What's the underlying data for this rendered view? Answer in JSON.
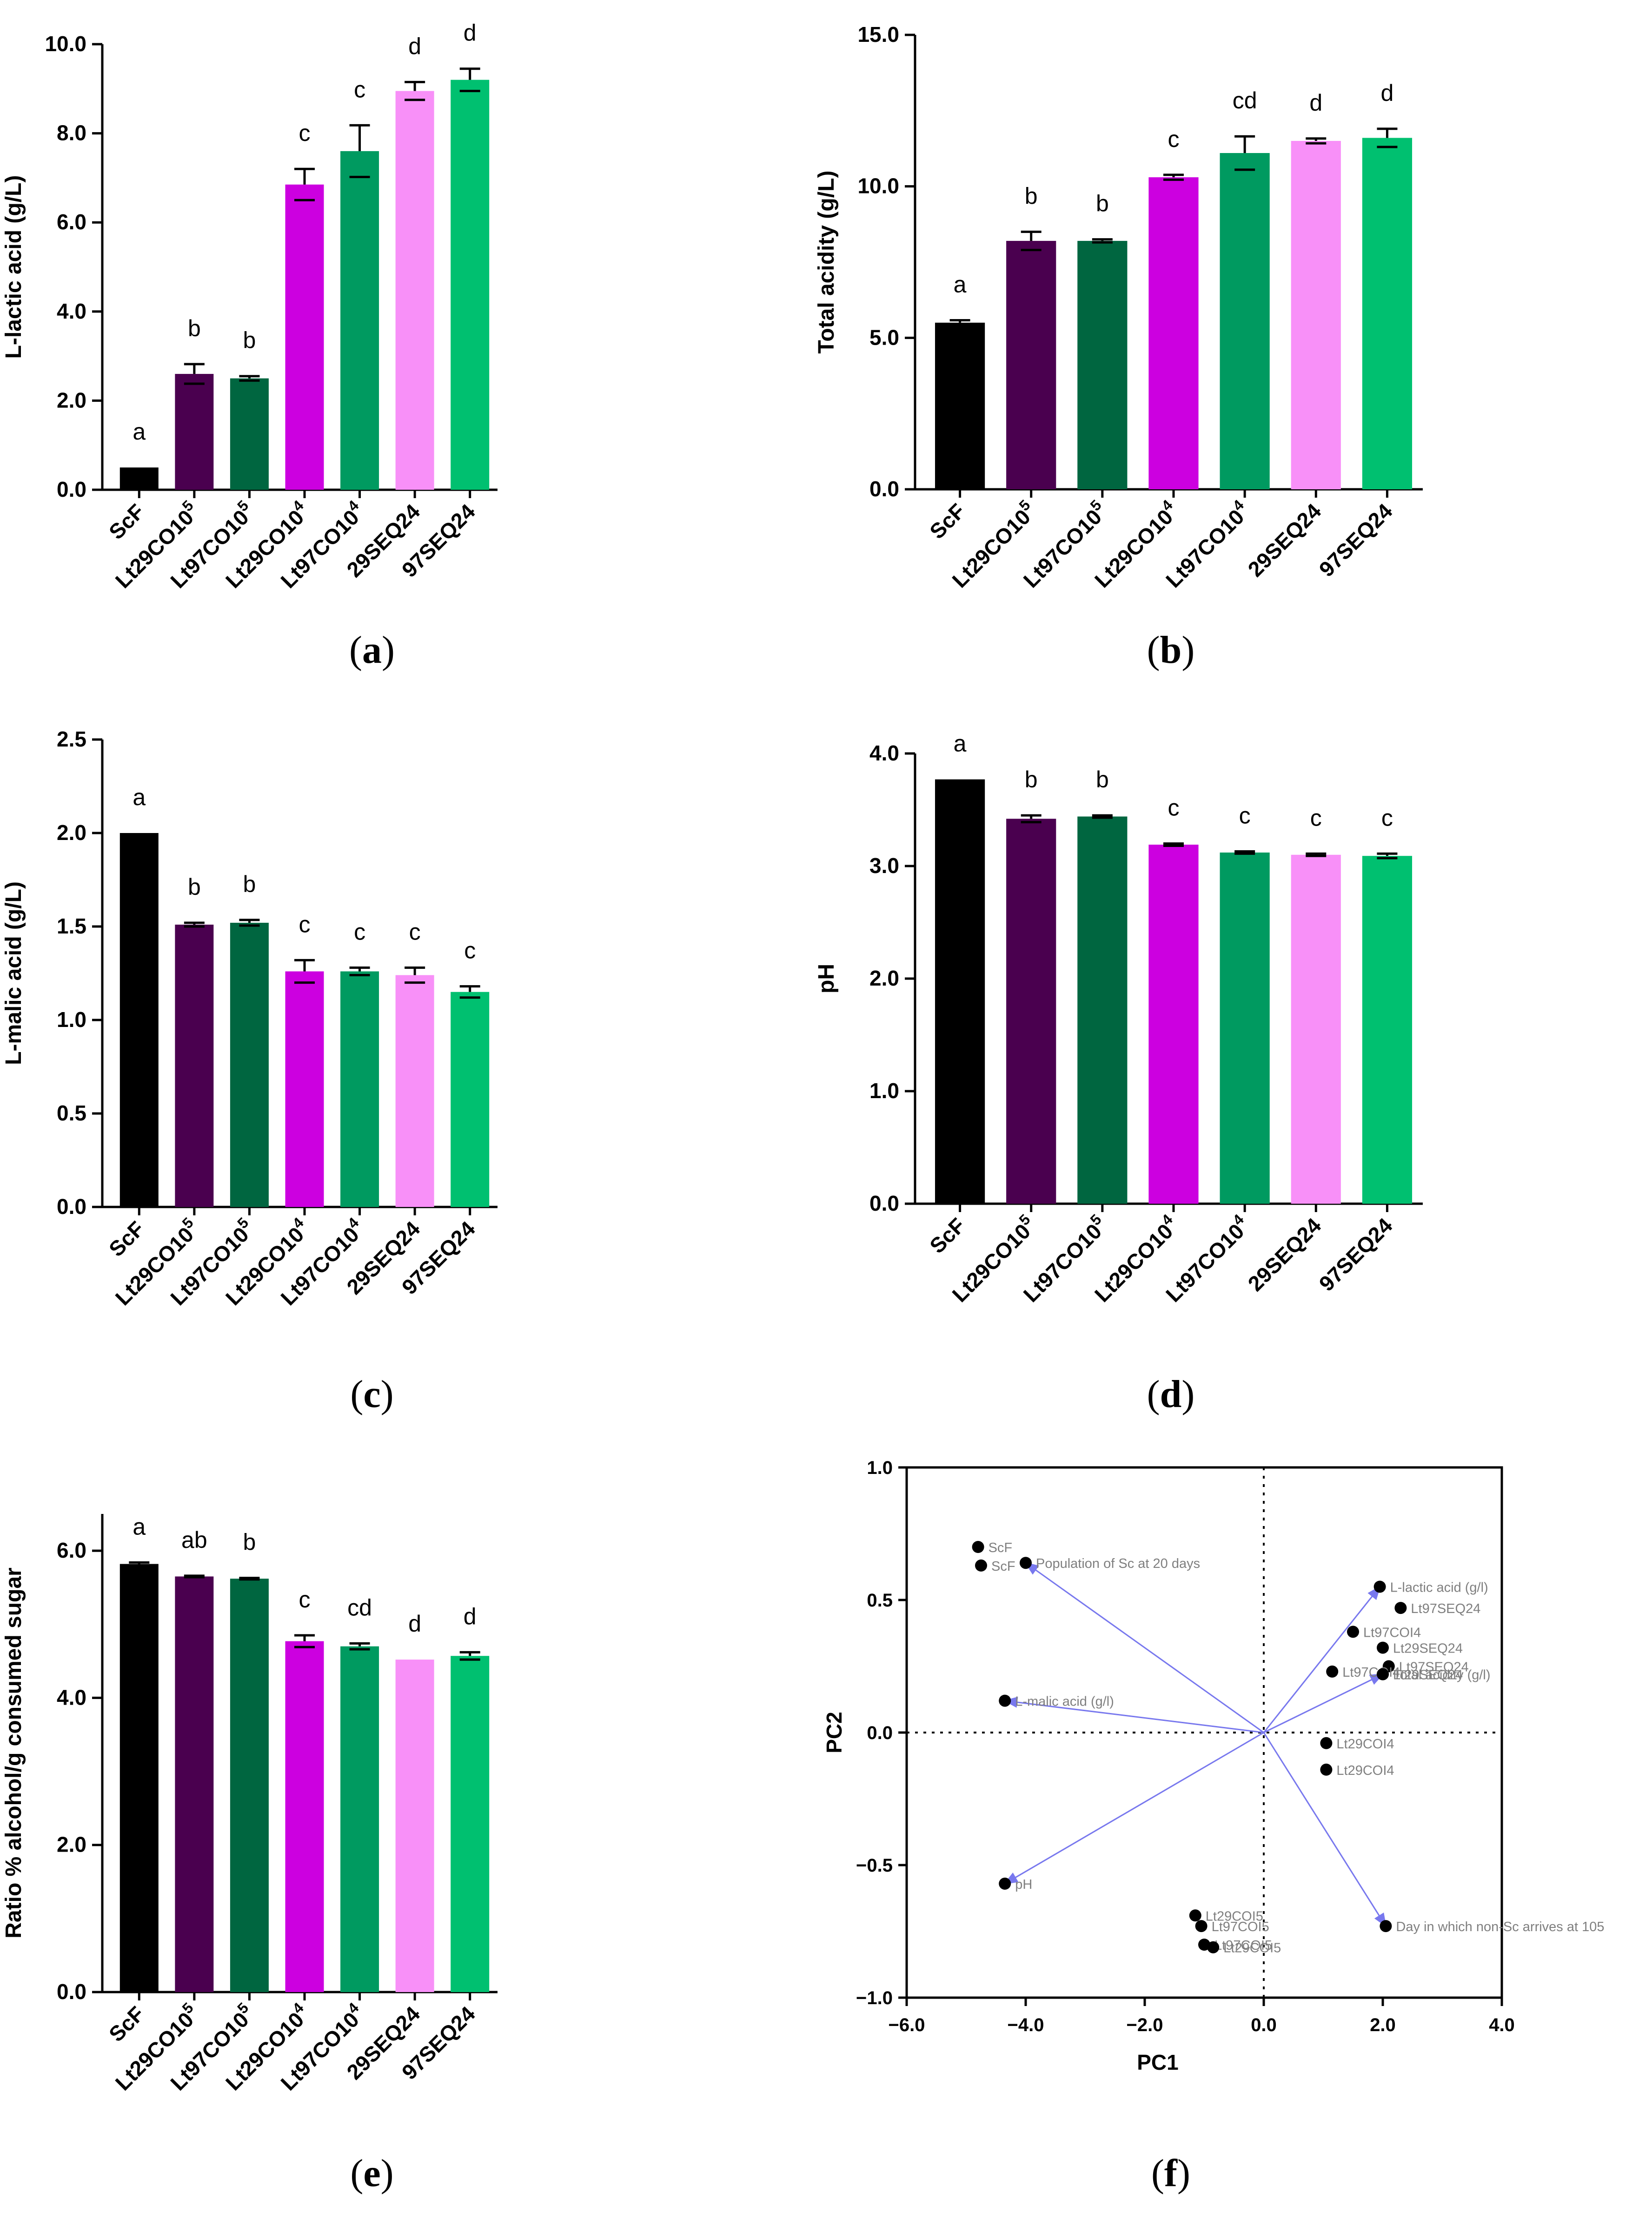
{
  "chart_data": [
    {
      "id": "a",
      "type": "bar",
      "panel_label": "(a)",
      "letter": "a",
      "ylabel": "L-lactic acid  (g/L)",
      "ylim": [
        0,
        10
      ],
      "yticks": [
        "0.0",
        "2.0",
        "4.0",
        "6.0",
        "8.0",
        "10.0"
      ],
      "ytick_values": [
        0,
        2,
        4,
        6,
        8,
        10
      ],
      "categories": [
        "ScF",
        "Lt29CO10",
        "Lt97CO10",
        "Lt29CO10",
        "Lt97CO10",
        "29SEQ24",
        "97SEQ24"
      ],
      "superscripts": [
        "",
        "5",
        "5",
        "4",
        "4",
        "",
        ""
      ],
      "values": [
        0.5,
        2.6,
        2.5,
        6.85,
        7.6,
        8.95,
        9.2
      ],
      "errors": [
        0.0,
        0.22,
        0.05,
        0.35,
        0.58,
        0.2,
        0.25
      ],
      "sig_letters": [
        "a",
        "b",
        "b",
        "c",
        "c",
        "d",
        "d"
      ],
      "colors": [
        "#000000",
        "#4a004f",
        "#006640",
        "#cc00e0",
        "#009a60",
        "#f890f8",
        "#00c070"
      ]
    },
    {
      "id": "b",
      "type": "bar",
      "panel_label": "(b)",
      "letter": "b",
      "ylabel": "Total acidity (g/L)",
      "ylim": [
        0,
        15
      ],
      "yticks": [
        "0.0",
        "5.0",
        "10.0",
        "15.0"
      ],
      "ytick_values": [
        0,
        5,
        10,
        15
      ],
      "categories": [
        "ScF",
        "Lt29CO10",
        "Lt97CO10",
        "Lt29CO10",
        "Lt97CO10",
        "29SEQ24",
        "97SEQ24"
      ],
      "superscripts": [
        "",
        "5",
        "5",
        "4",
        "4",
        "",
        ""
      ],
      "values": [
        5.5,
        8.2,
        8.2,
        10.3,
        11.1,
        11.5,
        11.6
      ],
      "errors": [
        0.08,
        0.3,
        0.05,
        0.08,
        0.55,
        0.08,
        0.3
      ],
      "sig_letters": [
        "a",
        "b",
        "b",
        "c",
        "cd",
        "d",
        "d"
      ],
      "colors": [
        "#000000",
        "#4a004f",
        "#006640",
        "#cc00e0",
        "#009a60",
        "#f890f8",
        "#00c070"
      ]
    },
    {
      "id": "c",
      "type": "bar",
      "panel_label": "(c)",
      "letter": "c",
      "ylabel": "L-malic acid (g/L)",
      "ylim": [
        0,
        2.5
      ],
      "yticks": [
        "0.0",
        "0.5",
        "1.0",
        "1.5",
        "2.0",
        "2.5"
      ],
      "ytick_values": [
        0,
        0.5,
        1,
        1.5,
        2,
        2.5
      ],
      "categories": [
        "ScF",
        "Lt29CO10",
        "Lt97CO10",
        "Lt29CO10",
        "Lt97CO10",
        "29SEQ24",
        "97SEQ24"
      ],
      "superscripts": [
        "",
        "5",
        "5",
        "4",
        "4",
        "",
        ""
      ],
      "values": [
        2.0,
        1.51,
        1.52,
        1.26,
        1.26,
        1.24,
        1.15
      ],
      "errors": [
        0.0,
        0.01,
        0.015,
        0.06,
        0.02,
        0.04,
        0.03
      ],
      "sig_letters": [
        "a",
        "b",
        "b",
        "c",
        "c",
        "c",
        "c"
      ],
      "colors": [
        "#000000",
        "#4a004f",
        "#006640",
        "#cc00e0",
        "#009a60",
        "#f890f8",
        "#00c070"
      ]
    },
    {
      "id": "d",
      "type": "bar",
      "panel_label": "(d)",
      "letter": "d",
      "ylabel": "pH",
      "ylim": [
        0,
        4
      ],
      "yticks": [
        "0.0",
        "1.0",
        "2.0",
        "3.0",
        "4.0"
      ],
      "ytick_values": [
        0,
        1,
        2,
        3,
        4
      ],
      "categories": [
        "ScF",
        "Lt29CO10",
        "Lt97CO10",
        "Lt29CO10",
        "Lt97CO10",
        "29SEQ24",
        "97SEQ24"
      ],
      "superscripts": [
        "",
        "5",
        "5",
        "4",
        "4",
        "",
        ""
      ],
      "values": [
        3.77,
        3.42,
        3.44,
        3.19,
        3.12,
        3.1,
        3.09
      ],
      "errors": [
        0.0,
        0.03,
        0.01,
        0.01,
        0.01,
        0.01,
        0.02
      ],
      "sig_letters": [
        "a",
        "b",
        "b",
        "c",
        "c",
        "c",
        "c"
      ],
      "colors": [
        "#000000",
        "#4a004f",
        "#006640",
        "#cc00e0",
        "#009a60",
        "#f890f8",
        "#00c070"
      ]
    },
    {
      "id": "e",
      "type": "bar",
      "panel_label": "(e)",
      "letter": "e",
      "ylabel": "Ratio % alcohol/g consumed sugar",
      "ylim": [
        0,
        6.5
      ],
      "yticks": [
        "0.0",
        "2.0",
        "4.0",
        "6.0"
      ],
      "ytick_values": [
        0,
        2,
        4,
        6
      ],
      "categories": [
        "ScF",
        "Lt29CO10",
        "Lt97CO10",
        "Lt29CO10",
        "Lt97CO10",
        "29SEQ24",
        "97SEQ24"
      ],
      "superscripts": [
        "",
        "5",
        "5",
        "4",
        "4",
        "",
        ""
      ],
      "values": [
        5.82,
        5.65,
        5.62,
        4.77,
        4.7,
        4.52,
        4.57
      ],
      "errors": [
        0.02,
        0.01,
        0.01,
        0.08,
        0.04,
        0.0,
        0.05
      ],
      "sig_letters": [
        "a",
        "ab",
        "b",
        "c",
        "cd",
        "d",
        "d"
      ],
      "colors": [
        "#000000",
        "#4a004f",
        "#006640",
        "#cc00e0",
        "#009a60",
        "#f890f8",
        "#00c070"
      ]
    },
    {
      "id": "f",
      "type": "scatter",
      "panel_label": "(f)",
      "letter": "f",
      "xlabel": "PC1",
      "ylabel": "PC2",
      "xlim": [
        -6,
        4
      ],
      "ylim": [
        -1,
        1
      ],
      "xticks": [
        "−6.0",
        "−4.0",
        "−2.0",
        "0.0",
        "2.0",
        "4.0"
      ],
      "xtick_values": [
        -6,
        -4,
        -2,
        0,
        2,
        4
      ],
      "yticks": [
        "−1.0",
        "−0.5",
        "0.0",
        "0.5",
        "1.0"
      ],
      "ytick_values": [
        -1,
        -0.5,
        0,
        0.5,
        1
      ],
      "points": [
        {
          "label": "ScF",
          "x": -4.8,
          "y": 0.7
        },
        {
          "label": "ScF",
          "x": -4.75,
          "y": 0.63
        },
        {
          "label": "Lt97SEQ24",
          "x": 2.3,
          "y": 0.47
        },
        {
          "label": "Lt97COI4",
          "x": 1.5,
          "y": 0.38
        },
        {
          "label": "Lt29SEQ24",
          "x": 2.0,
          "y": 0.32
        },
        {
          "label": "Lt97SEQ24",
          "x": 2.1,
          "y": 0.25
        },
        {
          "label": "Lt97COI4",
          "x": 1.15,
          "y": 0.23
        },
        {
          "label": "Lt29SEQ24",
          "x": 2.0,
          "y": 0.22
        },
        {
          "label": "Lt29COI4",
          "x": 1.05,
          "y": -0.04
        },
        {
          "label": "Lt29COI4",
          "x": 1.05,
          "y": -0.14
        },
        {
          "label": "Lt29COI5",
          "x": -1.15,
          "y": -0.69
        },
        {
          "label": "Lt97COI5",
          "x": -1.05,
          "y": -0.73
        },
        {
          "label": "Lt97COI5",
          "x": -1.0,
          "y": -0.8
        },
        {
          "label": "Lt29COI5",
          "x": -0.85,
          "y": -0.81
        }
      ],
      "vectors": [
        {
          "label": "Population of Sc at 20 days",
          "x": -4.0,
          "y": 0.64
        },
        {
          "label": "L-lactic acid (g/l)",
          "x": 1.95,
          "y": 0.55
        },
        {
          "label": "Total acidity (g/l)",
          "x": 2.0,
          "y": 0.22
        },
        {
          "label": "L-malic acid (g/l)",
          "x": -4.35,
          "y": 0.12
        },
        {
          "label": "pH",
          "x": -4.35,
          "y": -0.57
        },
        {
          "label": "Day in which non-Sc arrives at 105",
          "x": 2.05,
          "y": -0.73
        }
      ],
      "vector_color": "#7878ee",
      "label_color": "#7f7f7f",
      "grid": false
    }
  ]
}
